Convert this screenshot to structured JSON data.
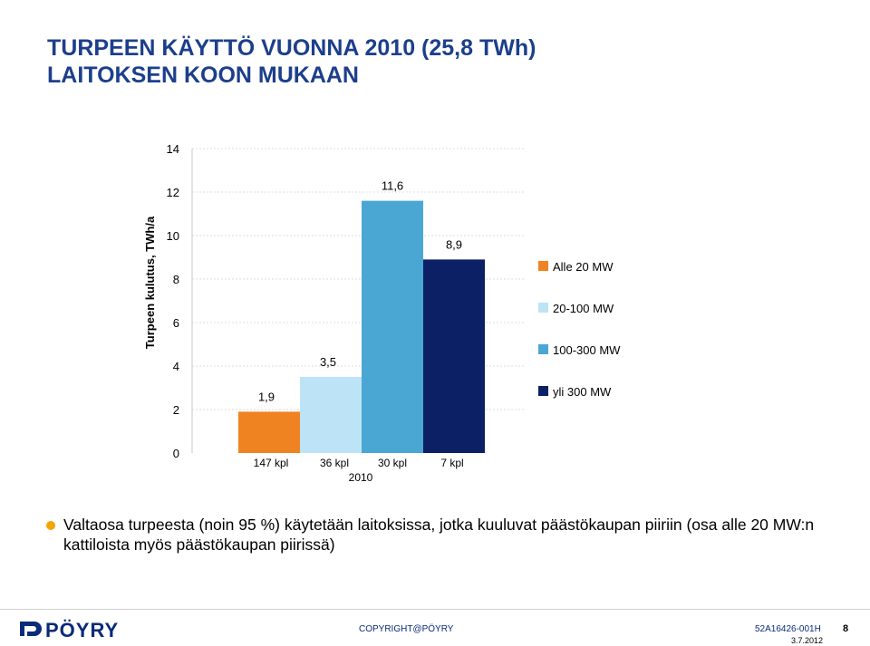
{
  "slide": {
    "title_line1": "TURPEEN KÄYTTÖ VUONNA 2010 (25,8 TWh)",
    "title_line2": "LAITOKSEN KOON MUKAAN",
    "bullet": "Valtaosa turpeesta (noin 95 %) käytetään laitoksissa, jotka kuuluvat päästökaupan piiriin (osa alle 20 MW:n kattiloista myös päästökaupan piirissä)",
    "accent_color": "#1c3f8c",
    "bullet_color": "#f5a400"
  },
  "footer": {
    "logo_text": "PÖYRY",
    "copyright": "COPYRIGHT@PÖYRY",
    "doc_id": "52A16426-001H",
    "page": "8",
    "date": "3.7.2012"
  },
  "chart_data": {
    "type": "bar",
    "ylabel": "Turpeen kulutus, TWh/a",
    "xlabel": "2010",
    "ylim": [
      0,
      14
    ],
    "yticks": [
      0,
      2,
      4,
      6,
      8,
      10,
      12,
      14
    ],
    "grid": true,
    "legend_position": "right",
    "series": [
      {
        "name": "Alle 20 MW",
        "value": 1.9,
        "value_label": "1,9",
        "count_label": "147 kpl",
        "color": "#f08321"
      },
      {
        "name": "20-100 MW",
        "value": 3.5,
        "value_label": "3,5",
        "count_label": "36 kpl",
        "color": "#bde3f7"
      },
      {
        "name": "100-300 MW",
        "value": 11.6,
        "value_label": "11,6",
        "count_label": "30 kpl",
        "color": "#4aa7d4"
      },
      {
        "name": "yli 300 MW",
        "value": 8.9,
        "value_label": "8,9",
        "count_label": "7 kpl",
        "color": "#0b2065"
      }
    ]
  }
}
